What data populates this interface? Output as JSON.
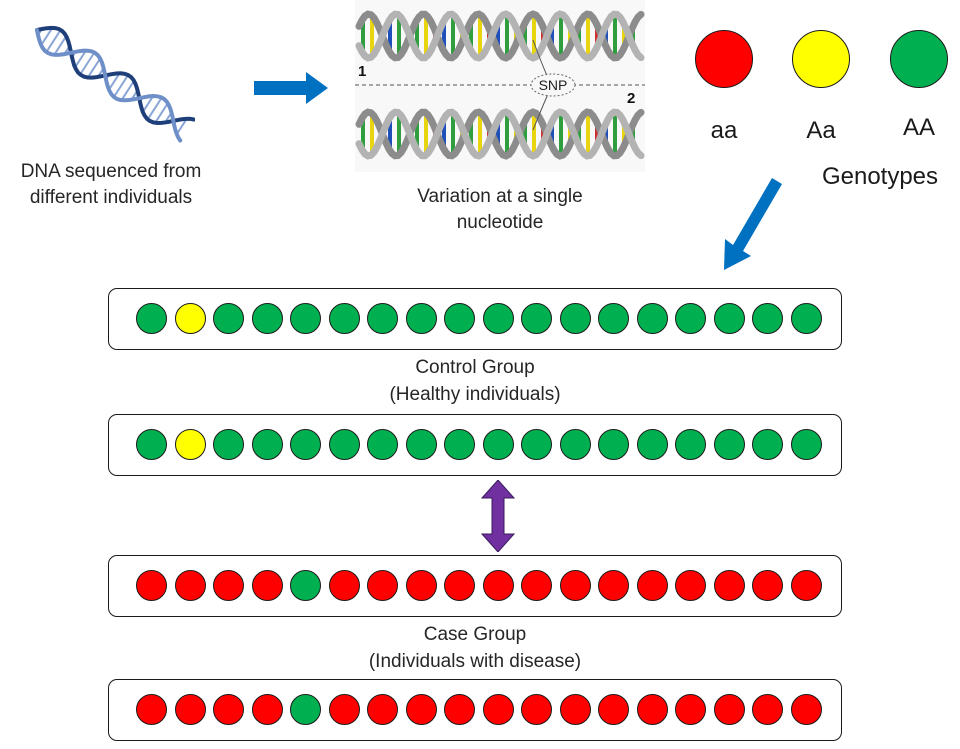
{
  "dna": {
    "icon": "dna-helix-icon",
    "caption_line1": "DNA sequenced from",
    "caption_line2": "different individuals"
  },
  "snp": {
    "icon": "snp-helix-pair-icon",
    "label": "SNP",
    "strand1": "1",
    "strand2": "2",
    "caption_line1": "Variation at a single",
    "caption_line2": "nucleotide"
  },
  "genotypes": {
    "title": "Genotypes",
    "items": [
      {
        "label": "aa",
        "color": "#ff0000"
      },
      {
        "label": "Aa",
        "color": "#ffff00"
      },
      {
        "label": "AA",
        "color": "#00b050"
      }
    ]
  },
  "colors": {
    "aa": "#ff0000",
    "Aa": "#ffff00",
    "AA": "#00b050",
    "arrow_blue": "#0070c0",
    "arrow_purple": "#7030a0"
  },
  "groups": {
    "control": {
      "label_line1": "Control Group",
      "label_line2": "(Healthy individuals)",
      "rows": [
        [
          "AA",
          "Aa",
          "AA",
          "AA",
          "AA",
          "AA",
          "AA",
          "AA",
          "AA",
          "AA",
          "AA",
          "AA",
          "AA",
          "AA",
          "AA",
          "AA",
          "AA",
          "AA"
        ],
        [
          "AA",
          "Aa",
          "AA",
          "AA",
          "AA",
          "AA",
          "AA",
          "AA",
          "AA",
          "AA",
          "AA",
          "AA",
          "AA",
          "AA",
          "AA",
          "AA",
          "AA",
          "AA"
        ]
      ]
    },
    "case": {
      "label_line1": "Case Group",
      "label_line2": "(Individuals with disease)",
      "rows": [
        [
          "aa",
          "aa",
          "aa",
          "aa",
          "AA",
          "aa",
          "aa",
          "aa",
          "aa",
          "aa",
          "aa",
          "aa",
          "aa",
          "aa",
          "aa",
          "aa",
          "aa",
          "aa"
        ],
        [
          "aa",
          "aa",
          "aa",
          "aa",
          "AA",
          "aa",
          "aa",
          "aa",
          "aa",
          "aa",
          "aa",
          "aa",
          "aa",
          "aa",
          "aa",
          "aa",
          "aa",
          "aa"
        ]
      ]
    }
  }
}
